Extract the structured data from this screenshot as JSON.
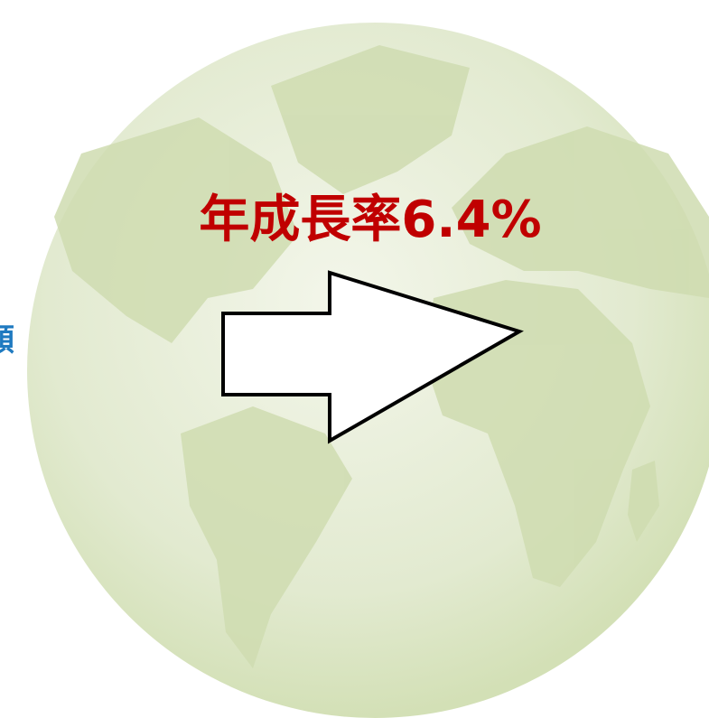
{
  "headline": "年成長率6.4%",
  "side_label": "額"
}
